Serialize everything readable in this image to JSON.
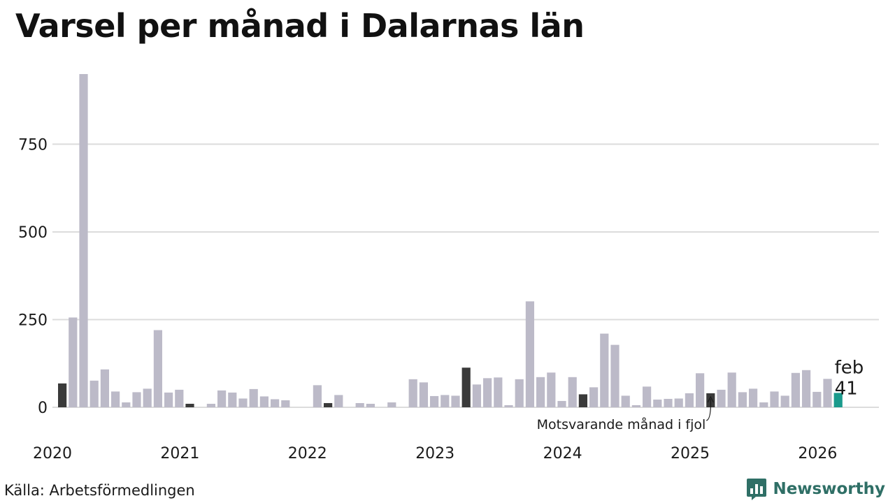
{
  "chart_data": {
    "type": "bar",
    "title": "Varsel per månad i Dalarnas län",
    "xlabel": "",
    "ylabel": "",
    "ylim": [
      0,
      960
    ],
    "yticks": [
      0,
      250,
      500,
      750
    ],
    "ytick_labels": [
      "0",
      "250",
      "500",
      "750"
    ],
    "x_year_labels": [
      "2020",
      "2021",
      "2022",
      "2023",
      "2024",
      "2025",
      "2026"
    ],
    "start": "2020-01",
    "values": [
      68,
      256,
      950,
      76,
      108,
      45,
      14,
      43,
      53,
      220,
      42,
      50,
      10,
      0,
      10,
      48,
      42,
      25,
      52,
      31,
      23,
      20,
      0,
      0,
      63,
      12,
      35,
      0,
      12,
      10,
      0,
      14,
      0,
      80,
      71,
      32,
      35,
      33,
      113,
      65,
      83,
      85,
      6,
      80,
      302,
      86,
      99,
      18,
      86,
      37,
      57,
      210,
      178,
      33,
      6,
      59,
      22,
      24,
      25,
      40,
      97,
      40,
      50,
      99,
      43,
      53,
      14,
      45,
      33,
      98,
      106,
      44,
      81,
      41
    ],
    "highlight_indices": [
      0,
      12,
      25,
      38,
      49,
      61
    ],
    "current_index": 73,
    "colors": {
      "default": "#bcbac8",
      "highlight": "#3a3a3a",
      "current": "#1a9a8c",
      "grid": "#dcdcdc"
    },
    "current_label_month": "feb",
    "current_label_value": "41",
    "annotation": "Motsvarande månad i fjol"
  },
  "footer": {
    "source": "Källa: Arbetsförmedlingen",
    "brand": "Newsworthy"
  }
}
